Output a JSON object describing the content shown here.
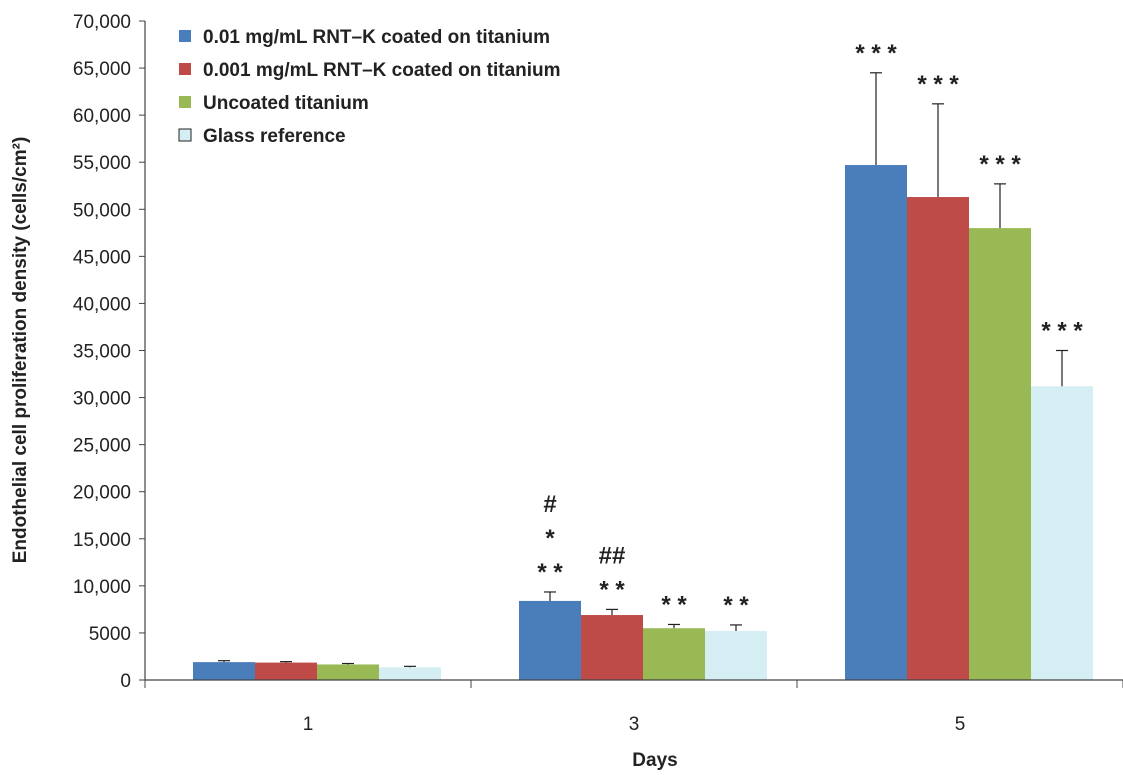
{
  "chart_data": {
    "type": "bar",
    "title": "",
    "xlabel": "Days",
    "ylabel": "Endothelial cell proliferation density (cells/cm²)",
    "ylim": [
      0,
      70000
    ],
    "yticks": [
      "0",
      "5000",
      "10,000",
      "15,000",
      "20,000",
      "25,000",
      "30,000",
      "35,000",
      "40,000",
      "45,000",
      "50,000",
      "55,000",
      "60,000",
      "65,000",
      "70,000"
    ],
    "categories": [
      "1",
      "3",
      "5"
    ],
    "legend_position": "top-left",
    "grid": false,
    "series": [
      {
        "name": "0.01 mg/mL RNT–K coated on titanium",
        "color": "#4a7ebb",
        "values": [
          1900,
          8400,
          54700
        ],
        "error": [
          150,
          950,
          9800
        ],
        "annotations": [
          [
            "",
            "",
            ""
          ],
          [
            "#",
            "*",
            "* *"
          ],
          [
            "* * *"
          ]
        ]
      },
      {
        "name": "0.001 mg/mL RNT–K coated on titanium",
        "color": "#be4b48",
        "values": [
          1850,
          6900,
          51300
        ],
        "error": [
          100,
          600,
          9900
        ],
        "annotations": [
          [],
          [
            "##",
            "* *"
          ],
          [
            "* * *"
          ]
        ]
      },
      {
        "name": "Uncoated titanium",
        "color": "#98b954",
        "values": [
          1650,
          5500,
          48000
        ],
        "error": [
          100,
          400,
          4700
        ],
        "annotations": [
          [],
          [
            "* *"
          ],
          [
            "* * *"
          ]
        ]
      },
      {
        "name": "Glass reference",
        "color": "#d4eef4",
        "values": [
          1350,
          5200,
          31200
        ],
        "error": [
          100,
          650,
          3800
        ],
        "annotations": [
          [],
          [
            "* *"
          ],
          [
            "* * *"
          ]
        ]
      }
    ]
  }
}
